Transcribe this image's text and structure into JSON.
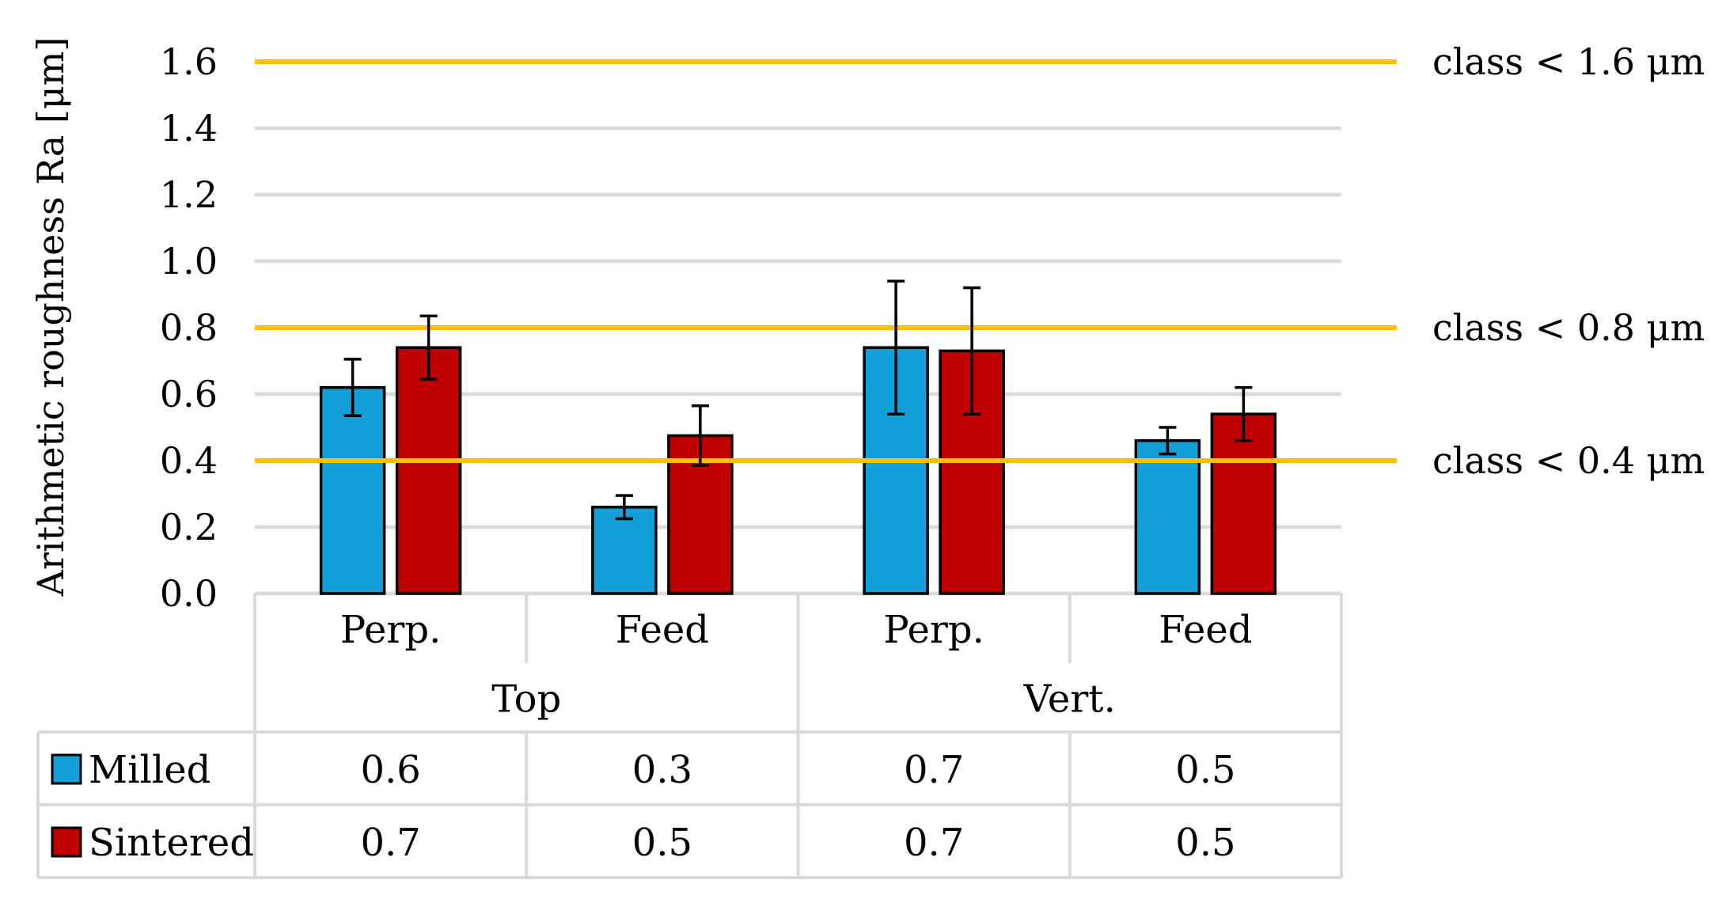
{
  "chart_data": {
    "type": "bar",
    "ylabel": "Arithmetic roughness Ra [μm]",
    "ylim": [
      0,
      1.6
    ],
    "yticks": [
      "0.0",
      "0.2",
      "0.4",
      "0.6",
      "0.8",
      "1.0",
      "1.2",
      "1.4",
      "1.6"
    ],
    "grid": true,
    "groups": [
      {
        "label": "Top",
        "categories": [
          "Perp.",
          "Feed"
        ]
      },
      {
        "label": "Vert.",
        "categories": [
          "Perp.",
          "Feed"
        ]
      }
    ],
    "categories": [
      "Perp.",
      "Feed",
      "Perp.",
      "Feed"
    ],
    "series": [
      {
        "name": "Milled",
        "color": "#139fd8",
        "values": [
          0.62,
          0.26,
          0.74,
          0.46
        ],
        "errors": [
          0.085,
          0.035,
          0.2,
          0.04
        ],
        "table_values": [
          "0.6",
          "0.3",
          "0.7",
          "0.5"
        ]
      },
      {
        "name": "Sintered",
        "color": "#c00000",
        "values": [
          0.74,
          0.475,
          0.73,
          0.54
        ],
        "errors": [
          0.095,
          0.09,
          0.19,
          0.08
        ],
        "table_values": [
          "0.7",
          "0.5",
          "0.7",
          "0.5"
        ]
      }
    ],
    "reference_lines": [
      {
        "value": 1.6,
        "label": "class < 1.6 μm",
        "color": "#ffc000"
      },
      {
        "value": 0.8,
        "label": "class < 0.8 μm",
        "color": "#ffc000"
      },
      {
        "value": 0.4,
        "label": "class < 0.4 μm",
        "color": "#ffc000"
      }
    ],
    "legend": "table-left"
  }
}
